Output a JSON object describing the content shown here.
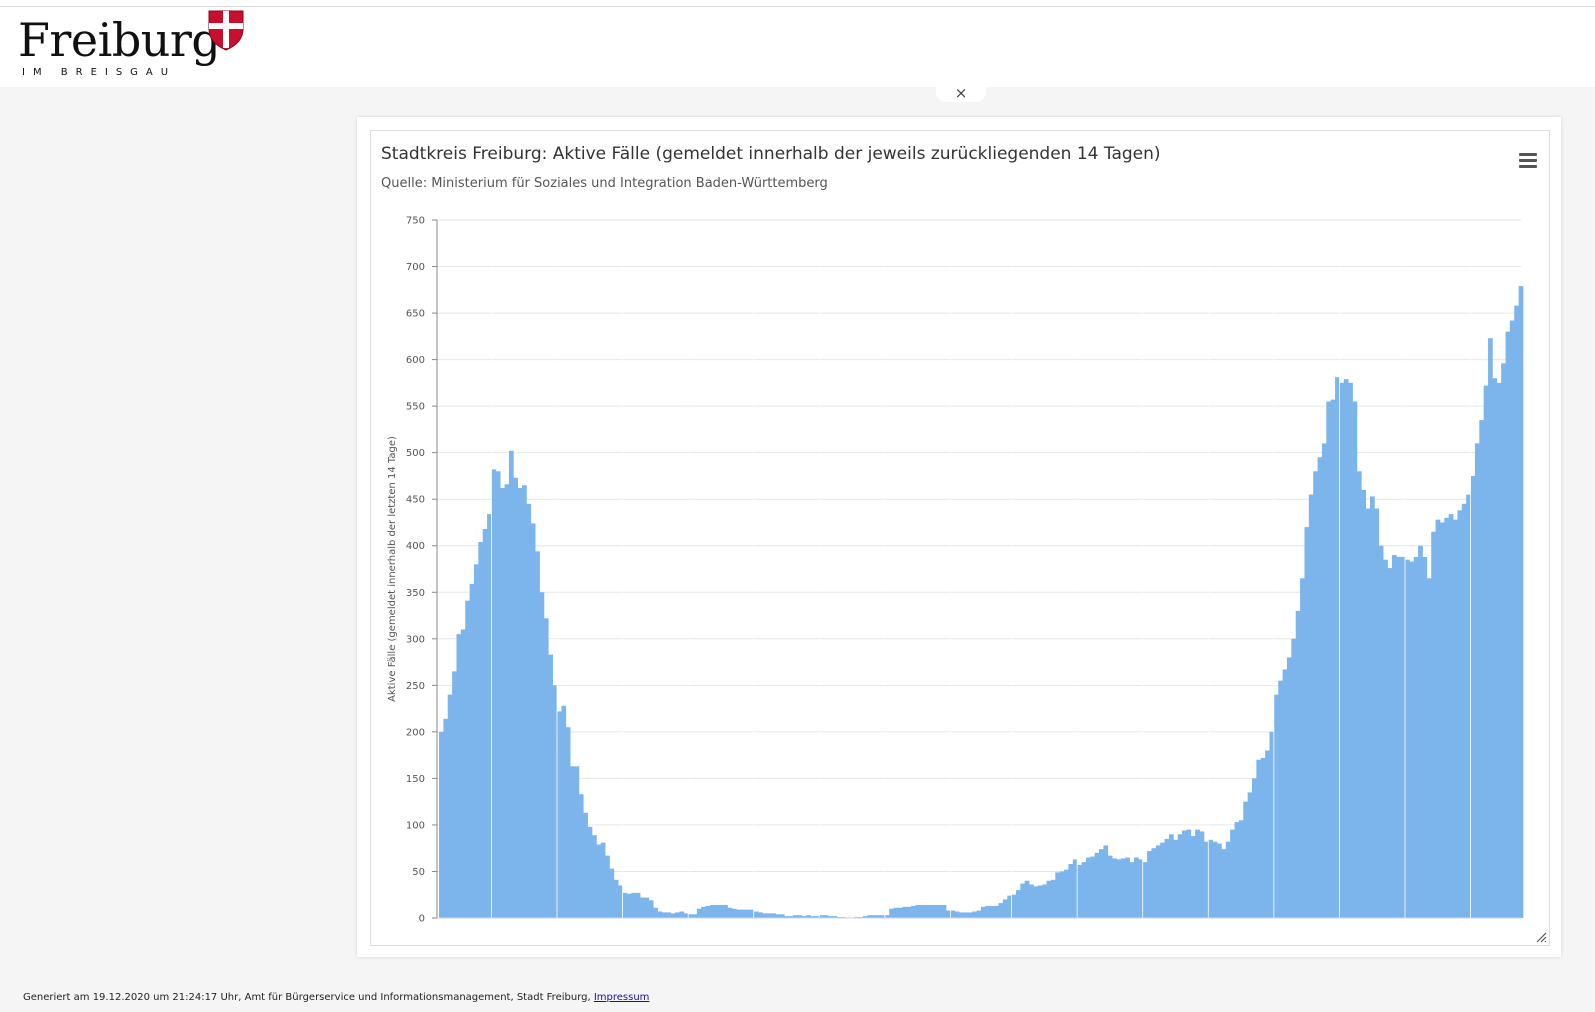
{
  "header": {
    "logo_text": "Freiburg",
    "logo_subtext": "IM BREISGAU",
    "close_label": "×"
  },
  "chart_data": {
    "type": "bar",
    "title": "Stadtkreis Freiburg: Aktive Fälle (gemeldet innerhalb der jeweils zurückliegenden 14 Tagen)",
    "subtitle": "Quelle: Ministerium für Soziales und Integration Baden-Württemberg",
    "xlabel": "",
    "ylabel": "Aktive Fälle (gemeldet innerhalb der letzten 14 Tage)",
    "ylim": [
      0,
      750
    ],
    "yticks": [
      0,
      50,
      100,
      150,
      200,
      250,
      300,
      350,
      400,
      450,
      500,
      550,
      600,
      650,
      700,
      750
    ],
    "grid": true,
    "color": "#7cb5ec",
    "values": [
      200,
      214,
      240,
      265,
      305,
      310,
      341,
      359,
      380,
      404,
      418,
      434,
      482,
      480,
      462,
      466,
      502,
      473,
      462,
      465,
      445,
      424,
      394,
      350,
      322,
      283,
      250,
      222,
      228,
      205,
      163,
      163,
      133,
      113,
      98,
      89,
      79,
      81,
      67,
      53,
      41,
      35,
      27,
      26,
      27,
      27,
      22,
      22,
      19,
      11,
      7,
      6,
      6,
      5,
      6,
      7,
      5,
      4,
      4,
      10,
      12,
      13,
      14,
      14,
      14,
      14,
      11,
      10,
      9,
      9,
      9,
      9,
      7,
      6,
      5,
      5,
      5,
      4,
      4,
      2,
      2,
      3,
      3,
      2,
      3,
      2,
      2,
      3,
      3,
      2,
      2,
      1,
      1,
      0,
      0,
      1,
      1,
      2,
      3,
      3,
      3,
      3,
      3,
      10,
      11,
      11,
      12,
      12,
      13,
      14,
      14,
      14,
      14,
      14,
      14,
      14,
      8,
      8,
      7,
      6,
      6,
      6,
      7,
      8,
      12,
      13,
      13,
      13,
      16,
      20,
      24,
      25,
      30,
      37,
      40,
      36,
      34,
      35,
      36,
      40,
      41,
      49,
      50,
      52,
      58,
      63,
      57,
      60,
      65,
      66,
      70,
      74,
      78,
      67,
      64,
      63,
      64,
      65,
      60,
      65,
      63,
      60,
      72,
      75,
      78,
      81,
      85,
      90,
      84,
      90,
      94,
      95,
      88,
      95,
      93,
      82,
      84,
      82,
      80,
      74,
      82,
      95,
      103,
      105,
      125,
      135,
      150,
      170,
      172,
      180,
      200,
      240,
      255,
      267,
      280,
      300,
      330,
      365,
      420,
      455,
      480,
      495,
      510,
      555,
      557,
      581,
      575,
      579,
      575,
      555,
      480,
      460,
      440,
      453,
      440,
      400,
      385,
      376,
      390,
      388,
      388,
      385,
      383,
      388,
      400,
      388,
      365,
      415,
      428,
      425,
      430,
      434,
      428,
      438,
      445,
      455,
      475,
      510,
      535,
      572,
      623,
      580,
      575,
      596,
      630,
      642,
      658,
      679
    ]
  },
  "footer": {
    "text": "Generiert am 19.12.2020 um 21:24:17 Uhr, Amt für Bürgerservice und Informationsmanagement, Stadt Freiburg, ",
    "link_label": "Impressum"
  }
}
